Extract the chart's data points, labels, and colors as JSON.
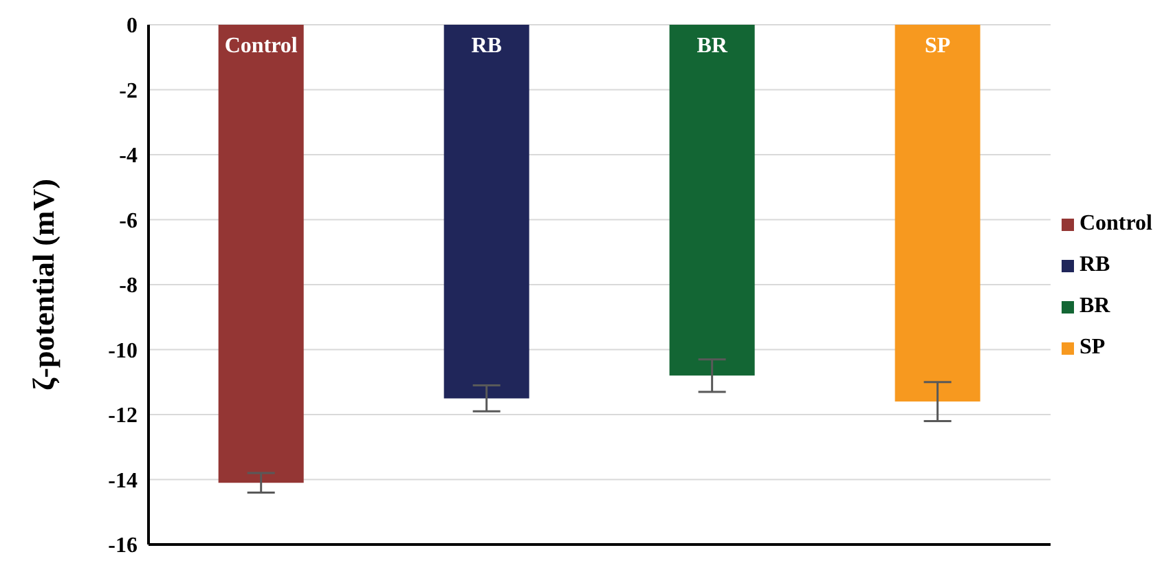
{
  "chart_data": {
    "type": "bar",
    "ylabel": "ζ-potential  (mV)",
    "categories": [
      null,
      null,
      null,
      null
    ],
    "stacked": true,
    "series": [
      {
        "name": "Control",
        "color": "#943634",
        "values": [
          -14.1,
          null,
          null,
          null
        ],
        "errors": [
          0.3,
          null,
          null,
          null
        ]
      },
      {
        "name": "RB",
        "color": "#20265a",
        "values": [
          null,
          -11.5,
          null,
          null
        ],
        "errors": [
          null,
          0.4,
          null,
          null
        ]
      },
      {
        "name": "BR",
        "color": "#136634",
        "values": [
          null,
          null,
          -10.8,
          null
        ],
        "errors": [
          null,
          null,
          0.5,
          null
        ]
      },
      {
        "name": "SP",
        "color": "#f7991f",
        "values": [
          null,
          null,
          null,
          -11.6
        ],
        "errors": [
          null,
          null,
          null,
          0.6
        ]
      }
    ],
    "ylim": [
      -16,
      0
    ],
    "yticks": [
      -16,
      -14,
      -12,
      -10,
      -8,
      -6,
      -4,
      -2,
      0
    ],
    "grid": "y",
    "legend": "right",
    "tick_labels": "y"
  }
}
